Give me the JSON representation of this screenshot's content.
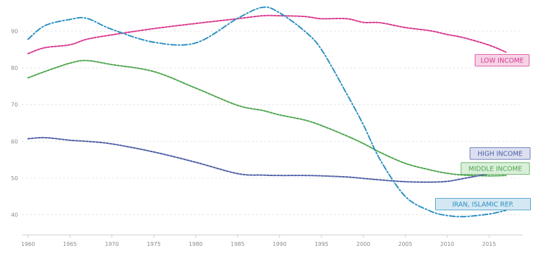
{
  "chart_data": {
    "type": "line",
    "title": "",
    "xlabel": "",
    "ylabel": "",
    "x": [
      1960,
      1962,
      1965,
      1967,
      1970,
      1975,
      1980,
      1985,
      1988,
      1990,
      1993,
      1995,
      1998,
      2000,
      2002,
      2005,
      2008,
      2010,
      2012,
      2015,
      2017
    ],
    "x_ticks": [
      1960,
      1965,
      1970,
      1975,
      1980,
      1985,
      1990,
      1995,
      2000,
      2005,
      2010,
      2015
    ],
    "y_ticks": [
      40,
      50,
      60,
      70,
      80,
      90
    ],
    "xlim": [
      1960,
      2019
    ],
    "ylim": [
      34.5,
      97
    ],
    "grid": true,
    "series": [
      {
        "name": "LOW INCOME",
        "color": "#d9378f",
        "dash": "3 2",
        "label_bg": "#f6d3e6",
        "label_border": "#d9378f",
        "values": [
          83.9,
          85.5,
          86.3,
          87.8,
          89.0,
          90.7,
          92.1,
          93.4,
          94.2,
          94.2,
          94.0,
          93.4,
          93.4,
          92.4,
          92.3,
          91.0,
          90.1,
          89.1,
          88.2,
          86.2,
          84.3
        ]
      },
      {
        "name": "MIDDLE INCOME",
        "color": "#4ea64e",
        "dash": "3 2",
        "label_bg": "#d9efd9",
        "label_border": "#4ea64e",
        "values": [
          77.3,
          79.0,
          81.3,
          82.0,
          80.9,
          79.0,
          74.5,
          69.8,
          68.4,
          67.2,
          65.8,
          64.3,
          61.5,
          59.4,
          57.0,
          54.0,
          52.2,
          51.3,
          50.8,
          50.6,
          50.7
        ]
      },
      {
        "name": "HIGH INCOME",
        "color": "#4e5fa6",
        "dash": "3 2",
        "label_bg": "#dcdff0",
        "label_border": "#4e5fa6",
        "values": [
          60.7,
          61.0,
          60.3,
          60.0,
          59.3,
          57.1,
          54.3,
          51.2,
          50.8,
          50.7,
          50.7,
          50.6,
          50.3,
          49.9,
          49.5,
          49.0,
          48.9,
          49.1,
          49.9,
          51.2,
          52.3
        ]
      },
      {
        "name": "IRAN, ISLAMIC REP.",
        "color": "#2a8fc1",
        "dash": "8 3 2 3",
        "label_bg": "#d4e8f4",
        "label_border": "#2a8fc1",
        "values": [
          87.8,
          91.5,
          93.2,
          93.5,
          90.5,
          87.0,
          86.8,
          93.5,
          96.5,
          95.0,
          90.0,
          85.0,
          73.0,
          64.5,
          55.0,
          45.0,
          41.0,
          39.8,
          39.5,
          40.2,
          41.2
        ]
      }
    ]
  }
}
